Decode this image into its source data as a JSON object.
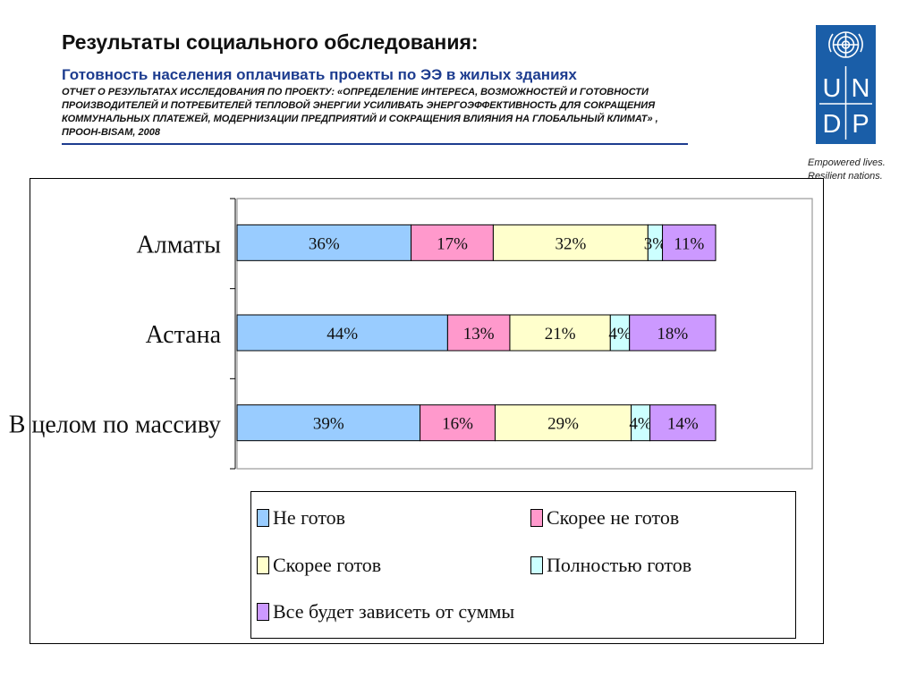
{
  "header": {
    "title": "Результаты социального обследования:",
    "subtitle": "Готовность населения оплачивать проекты по ЭЭ в жилых зданиях",
    "report_lines": [
      "ОТЧЕТ О РЕЗУЛЬТАТАХ ИССЛЕДОВАНИЯ ПО ПРОЕКТУ: «ОПРЕДЕЛЕНИЕ ИНТЕРЕСА, ВОЗМОЖНОСТЕЙ И ГОТОВНОСТИ",
      "ПРОИЗВОДИТЕЛЕЙ И ПОТРЕБИТЕЛЕЙ ТЕПЛОВОЙ ЭНЕРГИИ УСИЛИВАТЬ ЭНЕРГОЭФФЕКТИВНОСТЬ ДЛЯ СОКРАЩЕНИЯ",
      "КОММУНАЛЬНЫХ ПЛАТЕЖЕЙ, МОДЕРНИЗАЦИИ ПРЕДПРИЯТИЙ И СОКРАЩЕНИЯ ВЛИЯНИЯ НА ГЛОБАЛЬНЫЙ КЛИМАТ» ,",
      "ПРООН-BISAM, 2008"
    ]
  },
  "logo": {
    "letters": [
      "U",
      "N",
      "D",
      "P"
    ],
    "tagline_1": "Empowered lives.",
    "tagline_2": "Resilient nations.",
    "color": "#1a5ea8"
  },
  "chart_data": {
    "type": "bar",
    "orientation": "horizontal",
    "stacked": "percent",
    "categories": [
      "Алматы",
      "Астана",
      "В целом по массиву"
    ],
    "series": [
      {
        "name": "Не готов",
        "color": "#99ccff",
        "values": [
          36,
          44,
          39
        ],
        "labels": [
          "36%",
          "44%",
          "39%"
        ]
      },
      {
        "name": "Скорее не готов",
        "color": "#ff99cc",
        "values": [
          17,
          13,
          16
        ],
        "labels": [
          "17%",
          "13%",
          "16%"
        ]
      },
      {
        "name": "Скорее готов",
        "color": "#ffffcc",
        "values": [
          32,
          21,
          29
        ],
        "labels": [
          "32%",
          "21%",
          "29%"
        ]
      },
      {
        "name": "Полностью готов",
        "color": "#ccffff",
        "values": [
          3,
          4,
          4
        ],
        "labels": [
          "3%",
          "4%",
          "4%"
        ]
      },
      {
        "name": "Все будет зависеть от суммы",
        "color": "#cc99ff",
        "values": [
          11,
          18,
          14
        ],
        "labels": [
          "11%",
          "18%",
          "14%"
        ]
      }
    ],
    "legend_position": "bottom",
    "grid": false
  }
}
